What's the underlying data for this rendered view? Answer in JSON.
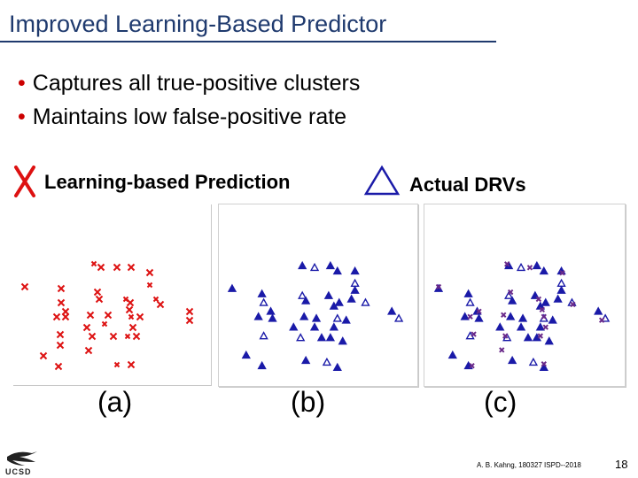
{
  "slide": {
    "title": "Improved Learning-Based Predictor",
    "bullets": [
      "Captures all true-positive clusters",
      "Maintains low false-positive rate"
    ],
    "legend": {
      "prediction_label": "Learning-based Prediction",
      "prediction_color": "#dd1111",
      "actual_label": "Actual DRVs",
      "actual_color": "#1a1aa8"
    },
    "panels": [
      {
        "caption": "(a)",
        "content": "learning-based prediction markers"
      },
      {
        "caption": "(b)",
        "content": "actual DRV markers"
      },
      {
        "caption": "(c)",
        "content": "overlay of prediction and actual DRVs"
      }
    ],
    "footer": {
      "logo_text": "UCSD",
      "citation": "A. B. Kahng, 180327 ISPD--2018",
      "page_number": "18"
    }
  }
}
